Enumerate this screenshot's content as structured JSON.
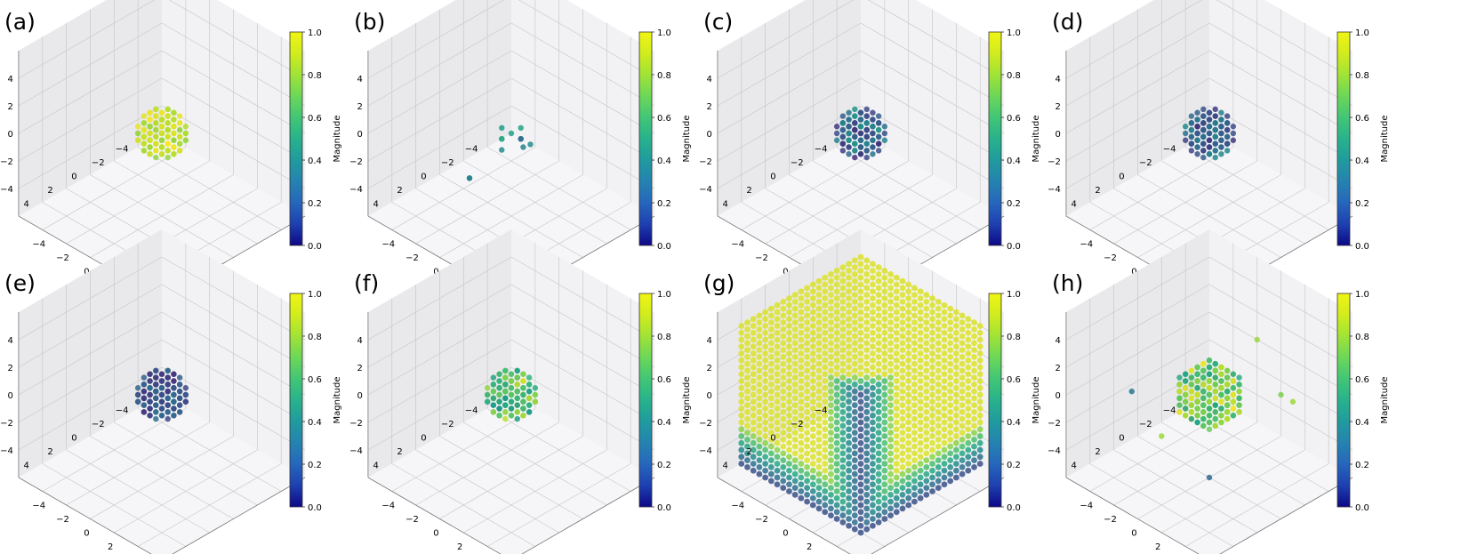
{
  "chart_data": [
    {
      "type": "scatter",
      "panel_label": "(a)",
      "shape": "sphere",
      "radius": 1.6,
      "base": 0.92,
      "spread": 0.1,
      "outliers": [],
      "tick_labels": [
        "4",
        "2",
        "0",
        "−2",
        "−4"
      ],
      "x_ticks": [
        "−4",
        "−2",
        "0",
        "2",
        "4"
      ],
      "y_ticks": [
        "−4",
        "−2",
        "0",
        "2",
        "4"
      ],
      "colorbar": {
        "label": "Magnitude",
        "ticks": [
          "0.0",
          "0.2",
          "0.4",
          "0.6",
          "0.8",
          "1.0"
        ],
        "range": [
          0,
          1
        ]
      }
    },
    {
      "type": "scatter",
      "panel_label": "(b)",
      "shape": "sparse",
      "radius": 1.4,
      "base": 0.52,
      "spread": 0.16,
      "outliers": [
        {
          "x": -3.5,
          "y": -2.5,
          "z": -4.0,
          "v": 0.45
        },
        {
          "x": 2.0,
          "y": -1.5,
          "z": -3.0,
          "v": 0.45
        },
        {
          "x": 2.5,
          "y": -1.0,
          "z": -2.5,
          "v": 0.45
        }
      ],
      "tick_labels": [
        "4",
        "2",
        "0",
        "−2",
        "−4"
      ],
      "x_ticks": [
        "−4",
        "−2",
        "0",
        "2",
        "4"
      ],
      "y_ticks": [
        "−4",
        "−2",
        "0",
        "2",
        "4"
      ],
      "colorbar": {
        "label": "Magnitude",
        "ticks": [
          "0.0",
          "0.2",
          "0.4",
          "0.6",
          "0.8",
          "1.0"
        ],
        "range": [
          0,
          1
        ]
      }
    },
    {
      "type": "scatter",
      "panel_label": "(c)",
      "shape": "sphere",
      "radius": 1.5,
      "base": 0.35,
      "spread": 0.22,
      "outliers": [],
      "tick_labels": [
        "4",
        "2",
        "0",
        "−2",
        "−4"
      ],
      "x_ticks": [
        "−4",
        "−2",
        "0",
        "2",
        "4"
      ],
      "y_ticks": [
        "−4",
        "−2",
        "0",
        "2",
        "4"
      ],
      "colorbar": {
        "label": "Magnitude",
        "ticks": [
          "0.0",
          "0.2",
          "0.4",
          "0.6",
          "0.8",
          "1.0"
        ],
        "range": [
          0,
          1
        ]
      }
    },
    {
      "type": "scatter",
      "panel_label": "(d)",
      "shape": "sphere",
      "radius": 1.5,
      "base": 0.3,
      "spread": 0.18,
      "outliers": [],
      "tick_labels": [
        "4",
        "2",
        "0",
        "−2",
        "−4"
      ],
      "x_ticks": [
        "−4",
        "−2",
        "0",
        "2",
        "4"
      ],
      "y_ticks": [
        "−4",
        "−2",
        "0",
        "2",
        "4"
      ],
      "colorbar": {
        "label": "Magnitude",
        "ticks": [
          "0.0",
          "0.2",
          "0.4",
          "0.6",
          "0.8",
          "1.0"
        ],
        "range": [
          0,
          1
        ]
      }
    },
    {
      "type": "scatter",
      "panel_label": "(e)",
      "shape": "sphere",
      "radius": 1.6,
      "base": 0.26,
      "spread": 0.12,
      "outliers": [],
      "tick_labels": [
        "4",
        "2",
        "0",
        "−2",
        "−4"
      ],
      "x_ticks": [
        "−4",
        "−2",
        "0",
        "2",
        "4"
      ],
      "y_ticks": [
        "−4",
        "−2",
        "0",
        "2",
        "4"
      ],
      "colorbar": {
        "label": "Magnitude",
        "ticks": [
          "0.0",
          "0.2",
          "0.4",
          "0.6",
          "0.8",
          "1.0"
        ],
        "range": [
          0,
          1
        ]
      }
    },
    {
      "type": "scatter",
      "panel_label": "(f)",
      "shape": "sphere",
      "radius": 1.6,
      "base": 0.72,
      "spread": 0.22,
      "outliers": [],
      "tick_labels": [
        "4",
        "2",
        "0",
        "−2",
        "−4"
      ],
      "x_ticks": [
        "−4",
        "−2",
        "0",
        "2",
        "4"
      ],
      "y_ticks": [
        "−4",
        "−2",
        "0",
        "2",
        "4"
      ],
      "colorbar": {
        "label": "Magnitude",
        "ticks": [
          "0.0",
          "0.2",
          "0.4",
          "0.6",
          "0.8",
          "1.0"
        ],
        "range": [
          0,
          1
        ]
      }
    },
    {
      "type": "scatter",
      "panel_label": "(g)",
      "shape": "cube",
      "radius": 5.0,
      "base": 0.95,
      "spread": 0.05,
      "outliers": [],
      "tick_labels": [
        "4",
        "2",
        "0",
        "−2",
        "−4"
      ],
      "x_ticks": [
        "−4",
        "−2",
        "0",
        "2",
        "4"
      ],
      "y_ticks": [
        "−4",
        "−2",
        "0",
        "2",
        "4"
      ],
      "colorbar": {
        "label": "Magnitude",
        "ticks": [
          "0.0",
          "0.2",
          "0.4",
          "0.6",
          "0.8",
          "1.0"
        ],
        "range": [
          0,
          1
        ]
      }
    },
    {
      "type": "scatter",
      "panel_label": "(h)",
      "shape": "sphere",
      "radius": 2.1,
      "base": 0.78,
      "spread": 0.22,
      "outliers": [
        {
          "x": -2.0,
          "y": 2.0,
          "z": 4.0,
          "v": 0.85
        },
        {
          "x": -4.0,
          "y": 3.0,
          "z": -1.0,
          "v": 0.85
        },
        {
          "x": 3.5,
          "y": -3.0,
          "z": 0.5,
          "v": 0.4
        },
        {
          "x": -4.0,
          "y": -3.0,
          "z": -3.0,
          "v": 0.2
        },
        {
          "x": 2.0,
          "y": 2.0,
          "z": -4.0,
          "v": 0.35
        },
        {
          "x": -2.0,
          "y": 4.0,
          "z": 1.0,
          "v": 0.8
        },
        {
          "x": 3.0,
          "y": -1.0,
          "z": -2.0,
          "v": 0.85
        }
      ],
      "tick_labels": [
        "4",
        "2",
        "0",
        "−2",
        "−4"
      ],
      "x_ticks": [
        "−4",
        "−2",
        "0",
        "2",
        "4"
      ],
      "y_ticks": [
        "−4",
        "−2",
        "0",
        "2",
        "4"
      ],
      "colorbar": {
        "label": "Magnitude",
        "ticks": [
          "0.0",
          "0.2",
          "0.4",
          "0.6",
          "0.8",
          "1.0"
        ],
        "range": [
          0,
          1
        ]
      }
    }
  ],
  "colors": {
    "pane_left": "#e9e9ec",
    "pane_right": "#f2f2f4",
    "pane_floor": "#f6f6f8",
    "grid": "#c9c9cc",
    "text": "#000000"
  }
}
